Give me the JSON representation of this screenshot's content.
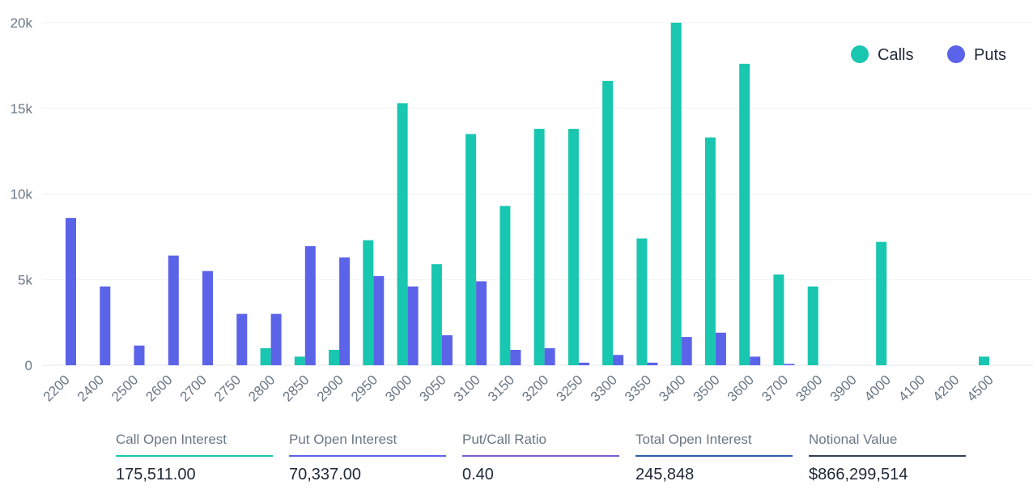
{
  "chart_data": {
    "type": "bar",
    "categories": [
      "2200",
      "2400",
      "2500",
      "2600",
      "2700",
      "2750",
      "2800",
      "2850",
      "2900",
      "2950",
      "3000",
      "3050",
      "3100",
      "3150",
      "3200",
      "3250",
      "3300",
      "3350",
      "3400",
      "3500",
      "3600",
      "3700",
      "3800",
      "3900",
      "4000",
      "4100",
      "4200",
      "4500"
    ],
    "series": [
      {
        "name": "Calls",
        "color": "#19c6b0",
        "values": [
          0,
          0,
          0,
          0,
          0,
          0,
          1000,
          500,
          900,
          7300,
          15300,
          5900,
          13500,
          9300,
          13800,
          13800,
          16600,
          7400,
          20000,
          13300,
          17600,
          5300,
          4600,
          0,
          7200,
          0,
          0,
          500
        ]
      },
      {
        "name": "Puts",
        "color": "#5b63e8",
        "values": [
          8600,
          4600,
          1150,
          6400,
          5500,
          3000,
          3000,
          6950,
          6300,
          5200,
          4600,
          1750,
          4900,
          900,
          1000,
          150,
          600,
          150,
          1650,
          1900,
          500,
          80,
          0,
          0,
          0,
          0,
          0,
          0
        ]
      }
    ],
    "y_ticks": [
      "0",
      "5k",
      "10k",
      "15k",
      "20k"
    ],
    "ylim": [
      0,
      20000
    ],
    "grid": true,
    "legend_position": "top-right"
  },
  "legend": [
    {
      "label": "Calls",
      "color": "#19c6b0"
    },
    {
      "label": "Puts",
      "color": "#5b63e8"
    }
  ],
  "stats": [
    {
      "label": "Call Open Interest",
      "value": "175,511.00",
      "color": "#19c6b0"
    },
    {
      "label": "Put Open Interest",
      "value": "70,337.00",
      "color": "#5b63e8"
    },
    {
      "label": "Put/Call Ratio",
      "value": "0.40",
      "color": "#7c5cd6"
    },
    {
      "label": "Total Open Interest",
      "value": "245,848",
      "color": "#2f5fae"
    },
    {
      "label": "Notional Value",
      "value": "$866,299,514",
      "color": "#374151"
    }
  ]
}
